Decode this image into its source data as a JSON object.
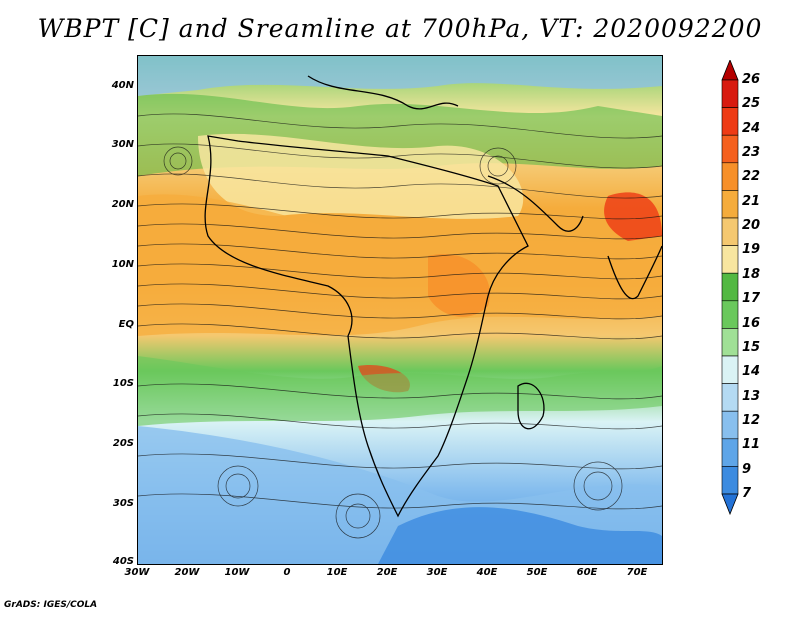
{
  "title": "WBPT [C] and Sreamline at 700hPa, VT: 2020092200",
  "footer": "GrADS: IGES/COLA",
  "map": {
    "lat_labels": [
      "40N",
      "30N",
      "20N",
      "10N",
      "EQ",
      "10S",
      "20S",
      "30S",
      "40S"
    ],
    "lon_labels": [
      "30W",
      "20W",
      "10W",
      "0",
      "10E",
      "20E",
      "30E",
      "40E",
      "50E",
      "60E",
      "70E"
    ],
    "lat_range": [
      -40,
      45
    ],
    "lon_range": [
      -30,
      75
    ],
    "field": "Wet-bulb potential temperature (C) with streamlines at 700hPa"
  },
  "colorbar": {
    "labels": [
      "26",
      "25",
      "24",
      "23",
      "22",
      "21",
      "20",
      "19",
      "18",
      "17",
      "16",
      "15",
      "14",
      "13",
      "12",
      "11",
      "9",
      "7"
    ],
    "colors": [
      "#b40000",
      "#d81a10",
      "#ee3a14",
      "#f5601e",
      "#f7902a",
      "#f5ac3c",
      "#f5c870",
      "#f8e6a0",
      "#52b842",
      "#6ac85c",
      "#a0e096",
      "#daf3f5",
      "#b4daf3",
      "#88bfee",
      "#5ea5e8",
      "#3c8be0",
      "#2372d6"
    ]
  }
}
